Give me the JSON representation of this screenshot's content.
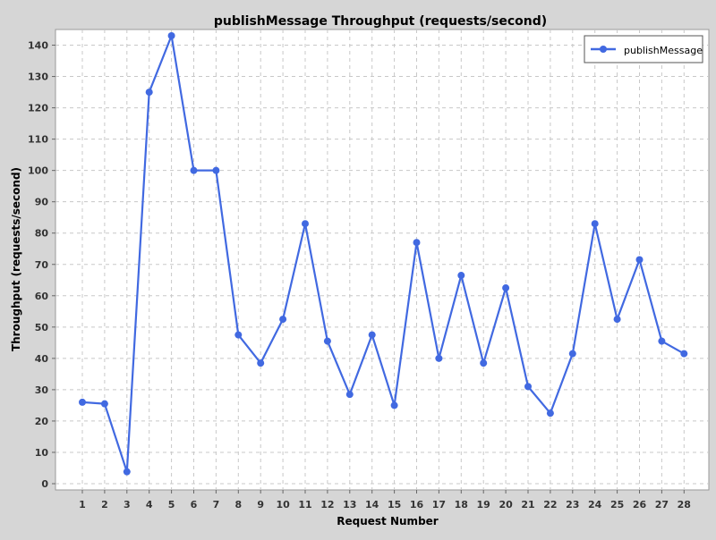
{
  "chart_data": {
    "type": "line",
    "title": "publishMessage Throughput (requests/second)",
    "xlabel": "Request Number",
    "ylabel": "Throughput (requests/second)",
    "ylim": [
      -2,
      145
    ],
    "yticks": [
      0,
      10,
      20,
      30,
      40,
      50,
      60,
      70,
      80,
      90,
      100,
      110,
      120,
      130,
      140
    ],
    "grid": true,
    "legend_position": "top-right",
    "categories": [
      "1",
      "2",
      "3",
      "4",
      "5",
      "6",
      "7",
      "8",
      "9",
      "10",
      "11",
      "12",
      "13",
      "14",
      "15",
      "16",
      "17",
      "18",
      "19",
      "20",
      "21",
      "22",
      "23",
      "24",
      "25",
      "26",
      "27",
      "28"
    ],
    "series": [
      {
        "name": "publishMessage",
        "color": "#4169e1",
        "values": [
          26,
          25.5,
          3.8,
          125,
          143,
          100,
          100,
          47.5,
          38.5,
          52.5,
          83,
          45.5,
          28.5,
          47.5,
          25,
          77,
          40,
          66.5,
          38.5,
          62.5,
          31,
          22.5,
          41.5,
          83,
          52.5,
          71.5,
          45.5,
          41.5
        ]
      }
    ]
  }
}
